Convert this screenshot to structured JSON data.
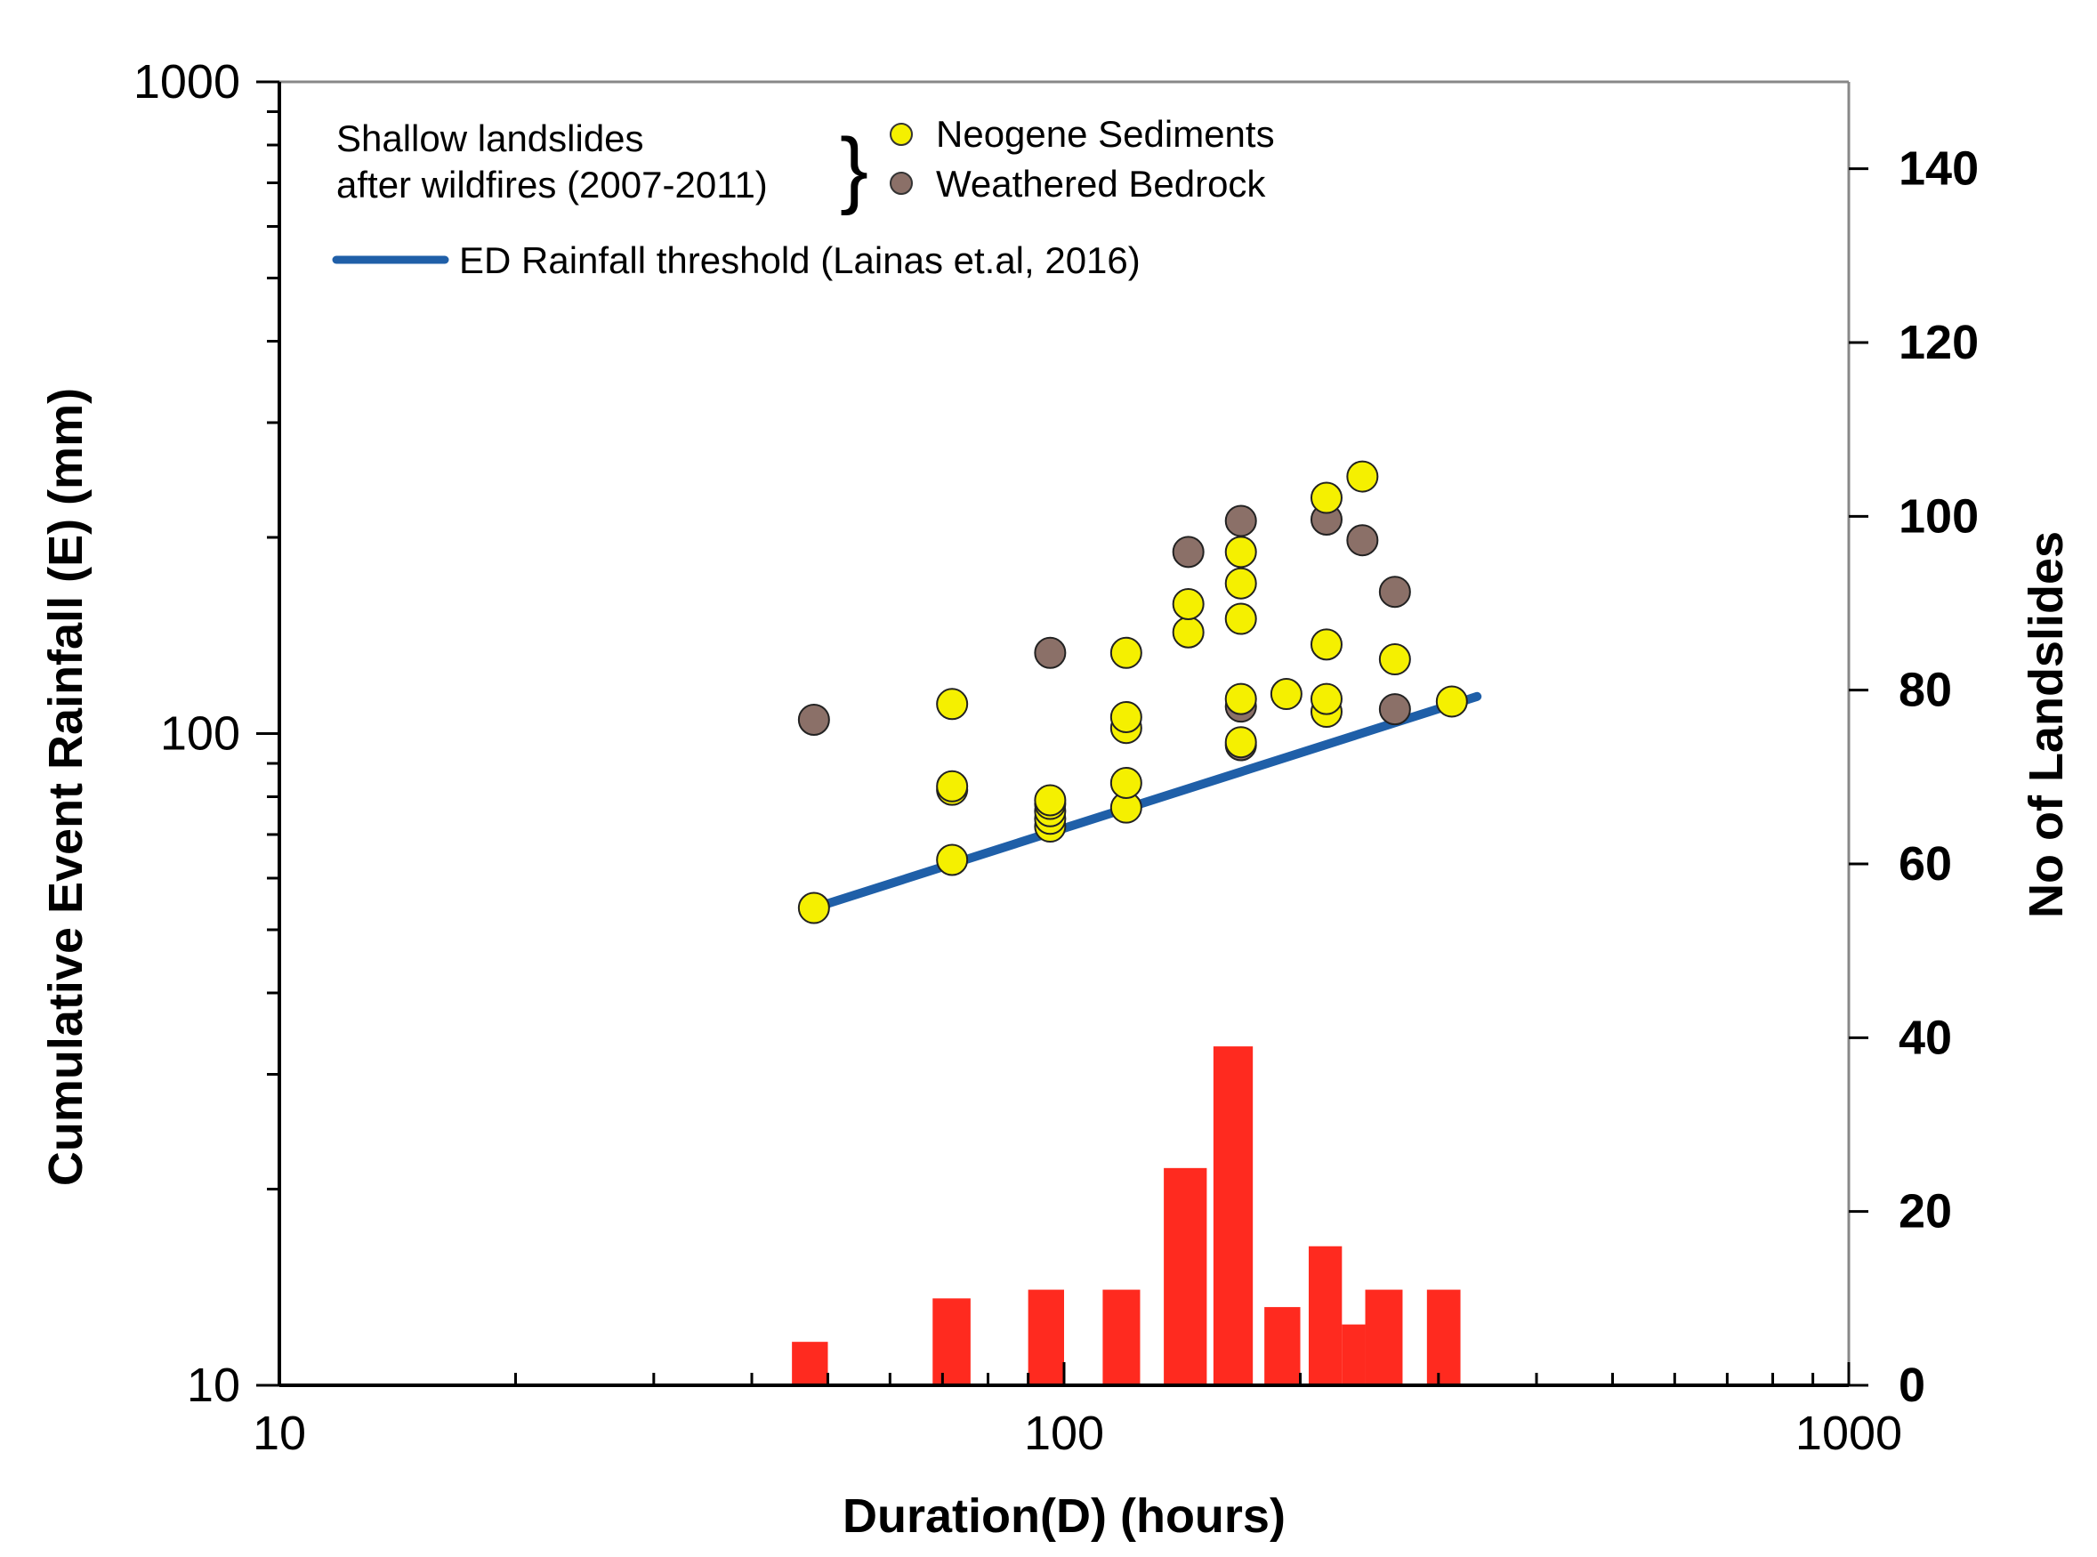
{
  "chart_data": {
    "type": "scatter",
    "xlabel": "Duration(D) (hours)",
    "ylabel": "Cumulative Event Rainfall (E) (mm)",
    "y2label": "No of Landslides",
    "x_scale": "log",
    "y_scale": "log",
    "xlim": [
      10,
      1000
    ],
    "ylim": [
      10,
      1000
    ],
    "y2lim": [
      0,
      150
    ],
    "x_ticks": [
      "10",
      "100",
      "1000"
    ],
    "y_ticks": [
      "10",
      "100",
      "1000"
    ],
    "y2_ticks": [
      "0",
      "20",
      "40",
      "60",
      "80",
      "100",
      "120",
      "140"
    ],
    "legend": {
      "group_label_line1": "Shallow landslides",
      "group_label_line2": "after wildfires (2007-2011)",
      "entry_neogene": "Neogene Sediments",
      "entry_bedrock": "Weathered Bedrock",
      "entry_threshold": "ED Rainfall threshold (Lainas et.al, 2016)"
    },
    "colors": {
      "neogene": "#f5f000",
      "bedrock": "#8b7068",
      "threshold": "#1f5fa8",
      "bars": "#ff2a1f"
    },
    "series": [
      {
        "name": "Neogene Sediments",
        "points": [
          [
            48,
            54
          ],
          [
            72,
            64
          ],
          [
            72,
            82
          ],
          [
            72,
            83
          ],
          [
            72,
            111
          ],
          [
            96,
            72
          ],
          [
            96,
            74
          ],
          [
            96,
            76
          ],
          [
            96,
            78
          ],
          [
            96,
            79
          ],
          [
            120,
            77
          ],
          [
            120,
            84
          ],
          [
            120,
            102
          ],
          [
            120,
            106
          ],
          [
            120,
            133
          ],
          [
            144,
            143
          ],
          [
            144,
            158
          ],
          [
            168,
            97
          ],
          [
            168,
            113
          ],
          [
            168,
            150
          ],
          [
            168,
            170
          ],
          [
            168,
            190
          ],
          [
            192,
            115
          ],
          [
            216,
            108
          ],
          [
            216,
            113
          ],
          [
            216,
            137
          ],
          [
            216,
            230
          ],
          [
            240,
            248
          ],
          [
            264,
            130
          ],
          [
            312,
            112
          ]
        ]
      },
      {
        "name": "Weathered Bedrock",
        "points": [
          [
            48,
            105
          ],
          [
            96,
            133
          ],
          [
            144,
            190
          ],
          [
            168,
            96
          ],
          [
            168,
            110
          ],
          [
            168,
            212
          ],
          [
            216,
            213
          ],
          [
            240,
            198
          ],
          [
            264,
            165
          ],
          [
            264,
            109
          ]
        ]
      },
      {
        "name": "ED Rainfall threshold (Lainas et.al, 2016)",
        "type": "line",
        "points": [
          [
            48,
            54
          ],
          [
            336,
            114
          ]
        ]
      },
      {
        "name": "No of Landslides",
        "type": "bar",
        "axis": "y2",
        "bins": [
          {
            "x_from": 45,
            "x_to": 50,
            "value": 5
          },
          {
            "x_from": 68,
            "x_to": 76,
            "value": 10
          },
          {
            "x_from": 90,
            "x_to": 100,
            "value": 11
          },
          {
            "x_from": 112,
            "x_to": 125,
            "value": 11
          },
          {
            "x_from": 134,
            "x_to": 152,
            "value": 25
          },
          {
            "x_from": 155,
            "x_to": 174,
            "value": 39
          },
          {
            "x_from": 180,
            "x_to": 200,
            "value": 9
          },
          {
            "x_from": 205,
            "x_to": 226,
            "value": 16
          },
          {
            "x_from": 226,
            "x_to": 242,
            "value": 7
          },
          {
            "x_from": 242,
            "x_to": 270,
            "value": 11
          },
          {
            "x_from": 290,
            "x_to": 320,
            "value": 11
          }
        ]
      }
    ]
  }
}
